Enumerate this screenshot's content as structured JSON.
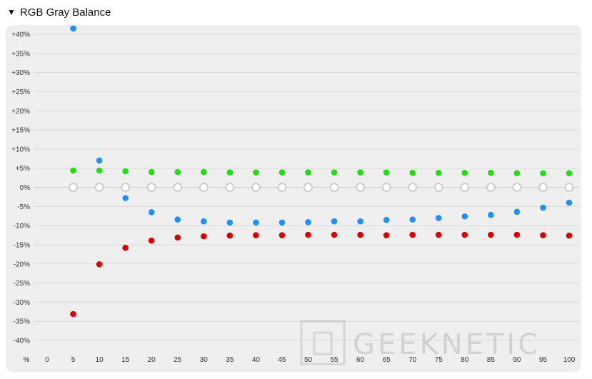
{
  "section": {
    "toggle_icon": "triangle-down-icon",
    "title": "RGB Gray Balance"
  },
  "chart_data": {
    "type": "scatter",
    "title": "RGB Gray Balance",
    "xlabel": "%",
    "ylabel": "",
    "x": [
      0,
      5,
      10,
      15,
      20,
      25,
      30,
      35,
      40,
      45,
      50,
      55,
      60,
      65,
      70,
      75,
      80,
      85,
      90,
      95,
      100
    ],
    "x_ticks": [
      "0",
      "5",
      "10",
      "15",
      "20",
      "25",
      "30",
      "35",
      "40",
      "45",
      "50",
      "55",
      "60",
      "65",
      "70",
      "75",
      "80",
      "85",
      "90",
      "95",
      "100"
    ],
    "ylim": [
      -40,
      40
    ],
    "y_ticks": [
      40,
      35,
      30,
      25,
      20,
      15,
      10,
      5,
      0,
      -5,
      -10,
      -15,
      -20,
      -25,
      -30,
      -35,
      -40
    ],
    "y_tick_labels": [
      "+40%",
      "+35%",
      "+30%",
      "+25%",
      "+20%",
      "+15%",
      "+10%",
      "+5%",
      "0%",
      "-5%",
      "-10%",
      "-15%",
      "-20%",
      "-25%",
      "-30%",
      "-35%",
      "-40%"
    ],
    "grid": true,
    "legend": "none",
    "series": [
      {
        "color": "#22dd11",
        "x": [
          5,
          10,
          15,
          20,
          25,
          30,
          35,
          40,
          45,
          50,
          55,
          60,
          65,
          70,
          75,
          80,
          85,
          90,
          95,
          100
        ],
        "values": [
          4.4,
          4.4,
          4.2,
          4.0,
          4.0,
          4.0,
          3.9,
          3.9,
          3.9,
          3.9,
          3.9,
          3.9,
          3.9,
          3.8,
          3.8,
          3.8,
          3.8,
          3.7,
          3.7,
          3.7
        ]
      },
      {
        "color": "#cccccc",
        "hollow": true,
        "x": [
          5,
          10,
          15,
          20,
          25,
          30,
          35,
          40,
          45,
          50,
          55,
          60,
          65,
          70,
          75,
          80,
          85,
          90,
          95,
          100
        ],
        "values": [
          0,
          0,
          0,
          0,
          0,
          0,
          0,
          0,
          0,
          0,
          0,
          0,
          0,
          0,
          0,
          0,
          0,
          0,
          0,
          0
        ]
      },
      {
        "color": "#1e90ff",
        "x": [
          5,
          10,
          15,
          20,
          25,
          30,
          35,
          40,
          45,
          50,
          55,
          60,
          65,
          70,
          75,
          80,
          85,
          90,
          95,
          100
        ],
        "values": [
          41.5,
          7.0,
          -2.8,
          -6.5,
          -8.4,
          -8.9,
          -9.2,
          -9.2,
          -9.2,
          -9.1,
          -8.9,
          -8.9,
          -8.5,
          -8.4,
          -8.0,
          -7.6,
          -7.2,
          -6.4,
          -5.3,
          -4.0
        ]
      },
      {
        "color": "#dd0000",
        "x": [
          5,
          10,
          15,
          20,
          25,
          30,
          35,
          40,
          45,
          50,
          55,
          60,
          65,
          70,
          75,
          80,
          85,
          90,
          95,
          100
        ],
        "values": [
          -33.1,
          -20.1,
          -15.8,
          -13.9,
          -13.1,
          -12.8,
          -12.6,
          -12.5,
          -12.5,
          -12.4,
          -12.4,
          -12.4,
          -12.5,
          -12.4,
          -12.4,
          -12.4,
          -12.4,
          -12.4,
          -12.5,
          -12.6
        ]
      }
    ]
  },
  "watermark": {
    "text": "GEEKNETIC"
  }
}
